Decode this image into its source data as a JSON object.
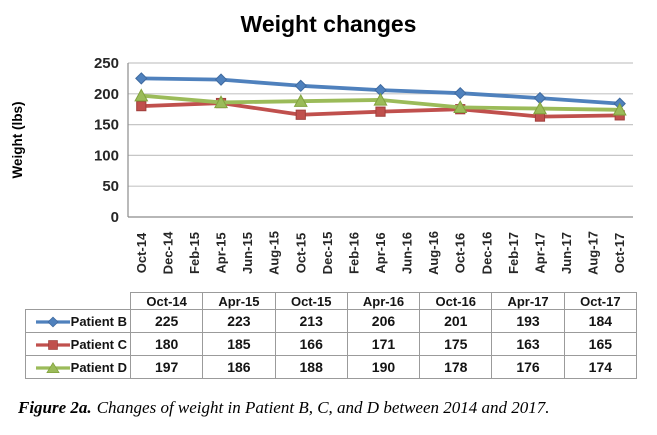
{
  "title": "Weight changes",
  "chart_data": {
    "type": "line",
    "title": "Weight changes",
    "xlabel": "",
    "ylabel": "Weight (lbs)",
    "ylim": [
      0,
      250
    ],
    "yticks": [
      0,
      50,
      100,
      150,
      200,
      250
    ],
    "grid": true,
    "legend_position": "table-below",
    "x_axis_categories": [
      "Oct-14",
      "Dec-14",
      "Feb-15",
      "Apr-15",
      "Jun-15",
      "Aug-15",
      "Oct-15",
      "Dec-15",
      "Feb-16",
      "Apr-16",
      "Jun-16",
      "Aug-16",
      "Oct-16",
      "Dec-16",
      "Feb-17",
      "Apr-17",
      "Jun-17",
      "Aug-17",
      "Oct-17"
    ],
    "data_categories": [
      "Oct-14",
      "Apr-15",
      "Oct-15",
      "Apr-16",
      "Oct-16",
      "Apr-17",
      "Oct-17"
    ],
    "data_category_indices": [
      0,
      3,
      6,
      9,
      12,
      15,
      18
    ],
    "series": [
      {
        "name": "Patient B",
        "marker": "diamond",
        "color": "#4F81BD",
        "marker_edge": "#3F6A9F",
        "values": [
          225,
          223,
          213,
          206,
          201,
          193,
          184
        ]
      },
      {
        "name": "Patient C",
        "marker": "square",
        "color": "#C0504D",
        "marker_edge": "#A03F3C",
        "values": [
          180,
          185,
          166,
          171,
          175,
          163,
          165
        ]
      },
      {
        "name": "Patient D",
        "marker": "triangle",
        "color": "#9BBB59",
        "marker_edge": "#82A23E",
        "values": [
          197,
          186,
          188,
          190,
          178,
          176,
          174
        ]
      }
    ]
  },
  "caption": {
    "label": "Figure 2a.",
    "text": "Changes of weight in Patient B, C, and D between 2014 and 2017."
  },
  "colors": {
    "gridline": "#C6C6C6",
    "axis": "#8C8C8C",
    "table_border": "#9B9B9B",
    "background": "#FFFFFF"
  }
}
